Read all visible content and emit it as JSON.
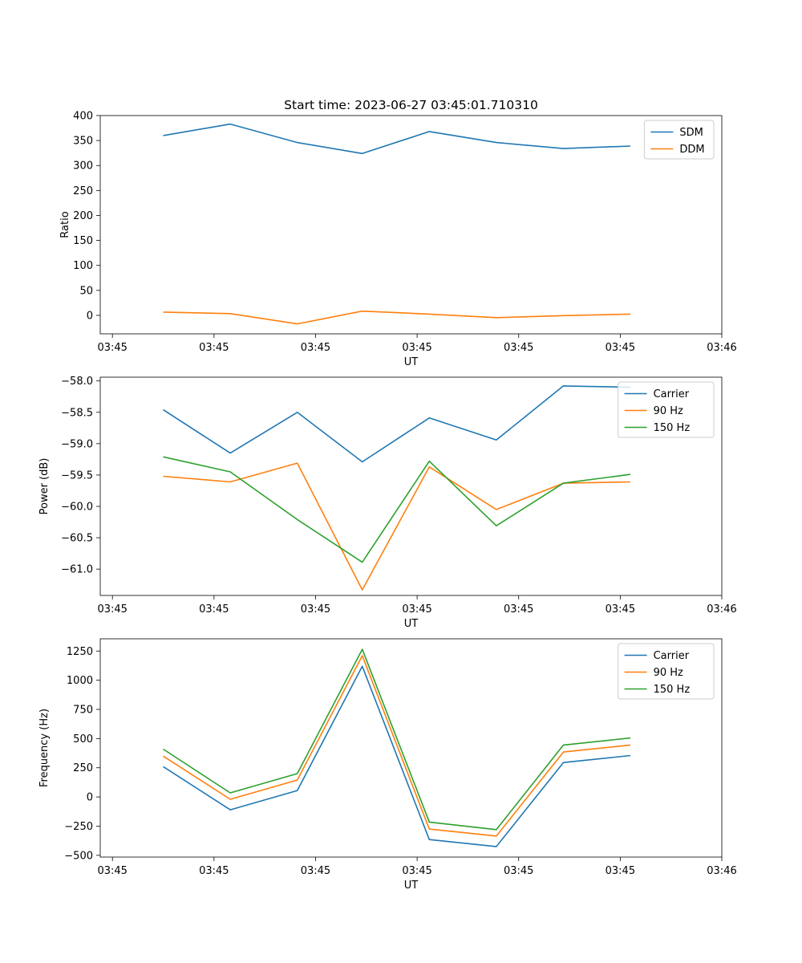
{
  "figure": {
    "title": "Start time: 2023-06-27 03:45:01.710310"
  },
  "x_time_ticks": [
    {
      "t": 0.0,
      "label": "03:45"
    },
    {
      "t": 0.5,
      "label": "03:45"
    },
    {
      "t": 1.0,
      "label": "03:45"
    },
    {
      "t": 1.5,
      "label": "03:45"
    },
    {
      "t": 2.0,
      "label": "03:45"
    },
    {
      "t": 2.5,
      "label": "03:45"
    },
    {
      "t": 3.0,
      "label": "03:46"
    }
  ],
  "chart_data": [
    {
      "type": "line",
      "name": "ratio-panel",
      "title": "Start time: 2023-06-27 03:45:01.710310",
      "xlabel": "UT",
      "ylabel": "Ratio",
      "xlim": [
        -0.06,
        3.0
      ],
      "ylim": [
        -37,
        400
      ],
      "yticks": [
        0,
        50,
        100,
        150,
        200,
        250,
        300,
        350,
        400
      ],
      "legend": "upper right",
      "grid": false,
      "series": [
        {
          "name": "SDM",
          "color": "#1f77b4",
          "points": [
            [
              0.25,
              360
            ],
            [
              0.58,
              383
            ],
            [
              0.91,
              346
            ],
            [
              1.23,
              324
            ],
            [
              1.56,
              368
            ],
            [
              1.89,
              346
            ],
            [
              2.22,
              334
            ],
            [
              2.55,
              339
            ]
          ]
        },
        {
          "name": "DDM",
          "color": "#ff7f0e",
          "points": [
            [
              0.25,
              6.5
            ],
            [
              0.58,
              3.5
            ],
            [
              0.91,
              -17
            ],
            [
              1.23,
              8.5
            ],
            [
              1.56,
              2.5
            ],
            [
              1.89,
              -4.5
            ],
            [
              2.22,
              -0.5
            ],
            [
              2.55,
              2.5
            ]
          ]
        }
      ]
    },
    {
      "type": "line",
      "name": "power-panel",
      "xlabel": "UT",
      "ylabel": "Power (dB)",
      "xlim": [
        -0.06,
        3.0
      ],
      "ylim": [
        -61.42,
        -57.94
      ],
      "yticks": [
        -61.0,
        -60.5,
        -60.0,
        -59.5,
        -59.0,
        -58.5,
        -58.0
      ],
      "ytick_labels": [
        "−61.0",
        "−60.5",
        "−60.0",
        "−59.5",
        "−59.0",
        "−58.5",
        "−58.0"
      ],
      "legend": "upper right",
      "grid": false,
      "series": [
        {
          "name": "Carrier",
          "color": "#1f77b4",
          "points": [
            [
              0.25,
              -58.46
            ],
            [
              0.58,
              -59.15
            ],
            [
              0.91,
              -58.5
            ],
            [
              1.23,
              -59.29
            ],
            [
              1.56,
              -58.59
            ],
            [
              1.89,
              -58.94
            ],
            [
              2.22,
              -58.08
            ],
            [
              2.55,
              -58.1
            ]
          ]
        },
        {
          "name": "90 Hz",
          "color": "#ff7f0e",
          "points": [
            [
              0.25,
              -59.52
            ],
            [
              0.58,
              -59.61
            ],
            [
              0.91,
              -59.31
            ],
            [
              1.23,
              -61.33
            ],
            [
              1.56,
              -59.37
            ],
            [
              1.89,
              -60.05
            ],
            [
              2.22,
              -59.63
            ],
            [
              2.55,
              -59.61
            ]
          ]
        },
        {
          "name": "150 Hz",
          "color": "#2ca02c",
          "points": [
            [
              0.25,
              -59.21
            ],
            [
              0.58,
              -59.45
            ],
            [
              0.91,
              -60.21
            ],
            [
              1.23,
              -60.89
            ],
            [
              1.56,
              -59.28
            ],
            [
              1.89,
              -60.31
            ],
            [
              2.22,
              -59.63
            ],
            [
              2.55,
              -59.49
            ]
          ]
        }
      ]
    },
    {
      "type": "line",
      "name": "frequency-panel",
      "xlabel": "UT",
      "ylabel": "Frequency (Hz)",
      "xlim": [
        -0.06,
        3.0
      ],
      "ylim": [
        -515,
        1355
      ],
      "yticks": [
        -500,
        -250,
        0,
        250,
        500,
        750,
        1000,
        1250
      ],
      "ytick_labels": [
        "−500",
        "−250",
        "0",
        "250",
        "500",
        "750",
        "1000",
        "1250"
      ],
      "legend": "upper right",
      "grid": false,
      "series": [
        {
          "name": "Carrier",
          "color": "#1f77b4",
          "points": [
            [
              0.25,
              260
            ],
            [
              0.58,
              -110
            ],
            [
              0.91,
              55
            ],
            [
              1.23,
              1120
            ],
            [
              1.56,
              -365
            ],
            [
              1.89,
              -425
            ],
            [
              2.22,
              295
            ],
            [
              2.55,
              355
            ]
          ]
        },
        {
          "name": "90 Hz",
          "color": "#ff7f0e",
          "points": [
            [
              0.25,
              350
            ],
            [
              0.58,
              -20
            ],
            [
              0.91,
              145
            ],
            [
              1.23,
              1210
            ],
            [
              1.56,
              -275
            ],
            [
              1.89,
              -335
            ],
            [
              2.22,
              385
            ],
            [
              2.55,
              445
            ]
          ]
        },
        {
          "name": "150 Hz",
          "color": "#2ca02c",
          "points": [
            [
              0.25,
              410
            ],
            [
              0.58,
              35
            ],
            [
              0.91,
              200
            ],
            [
              1.23,
              1265
            ],
            [
              1.56,
              -215
            ],
            [
              1.89,
              -280
            ],
            [
              2.22,
              445
            ],
            [
              2.55,
              505
            ]
          ]
        }
      ]
    }
  ]
}
